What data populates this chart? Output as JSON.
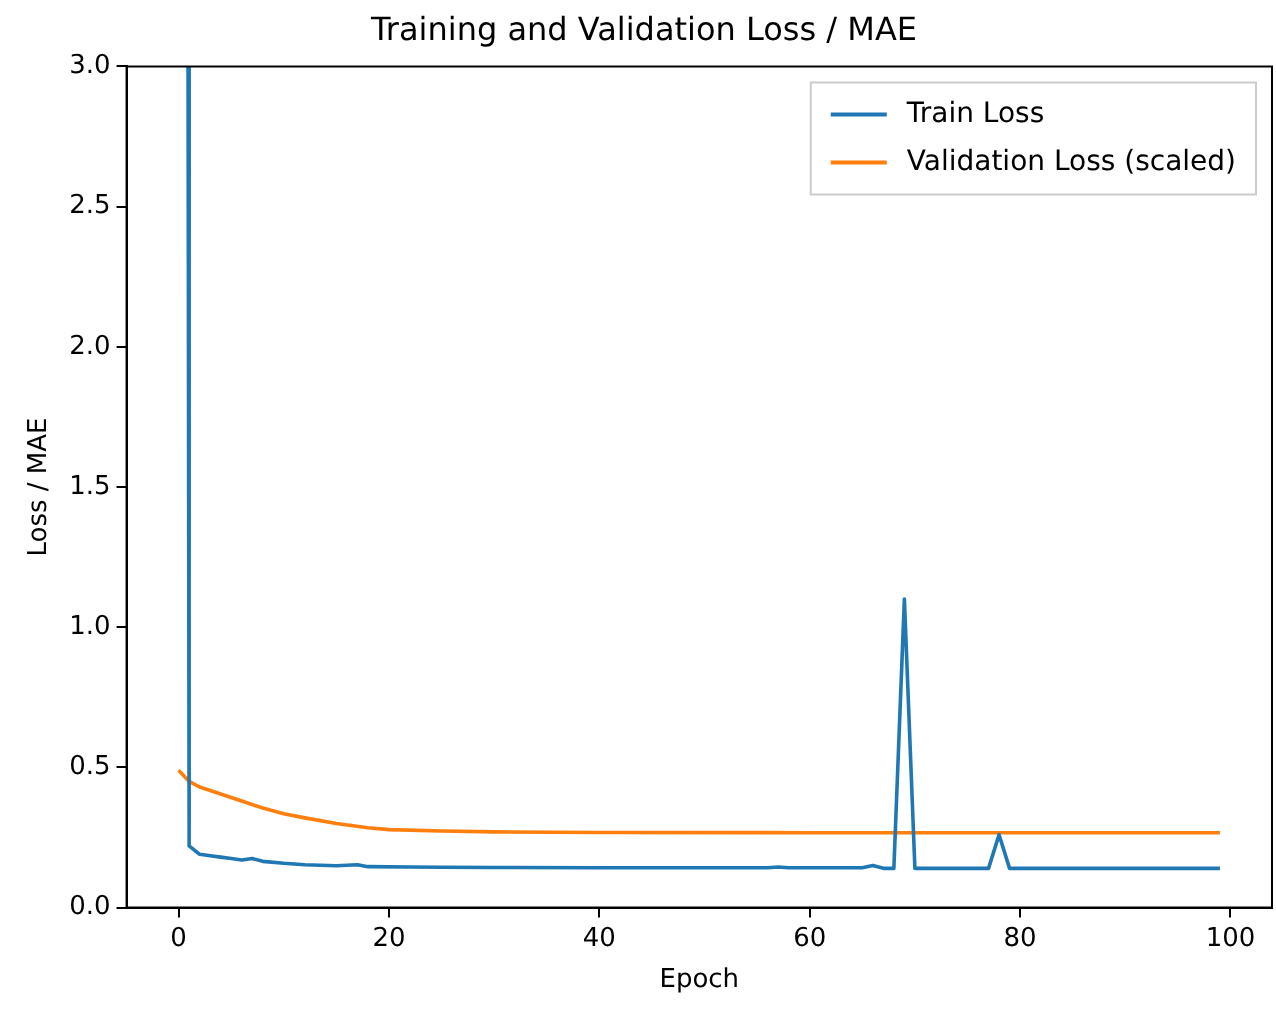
{
  "chart_data": {
    "type": "line",
    "title": "Training and Validation Loss / MAE",
    "xlabel": "Epoch",
    "ylabel": "Loss / MAE",
    "xlim": [
      -4.95,
      103.95
    ],
    "xticks": [
      0,
      20,
      40,
      60,
      80,
      100
    ],
    "ylim": [
      0,
      3
    ],
    "yticks": [
      {
        "value": 0,
        "label": "0.0"
      },
      {
        "value": 0.5,
        "label": "0.5"
      },
      {
        "value": 1,
        "label": "1.0"
      },
      {
        "value": 1.5,
        "label": "1.5"
      },
      {
        "value": 2,
        "label": "2.0"
      },
      {
        "value": 2.5,
        "label": "2.5"
      },
      {
        "value": 3,
        "label": "3.0"
      }
    ],
    "legend": "top right",
    "line_style": "solid",
    "marker": "none",
    "series": [
      {
        "name": "Train Loss",
        "color": "#1f77b4",
        "x": [
          0.9,
          1,
          2,
          3,
          4,
          5,
          6,
          7,
          8,
          10,
          12,
          15,
          17,
          18,
          22,
          25,
          30,
          40,
          50,
          56,
          57,
          58,
          65,
          66,
          67,
          68,
          69,
          70,
          77,
          78,
          79,
          90,
          99
        ],
        "values": [
          3.0,
          0.22,
          0.19,
          0.185,
          0.18,
          0.175,
          0.17,
          0.175,
          0.165,
          0.158,
          0.153,
          0.149,
          0.153,
          0.146,
          0.145,
          0.144,
          0.143,
          0.142,
          0.142,
          0.142,
          0.145,
          0.142,
          0.142,
          0.15,
          0.14,
          0.14,
          1.1,
          0.14,
          0.14,
          0.26,
          0.14,
          0.14,
          0.14
        ]
      },
      {
        "name": "Validation Loss (scaled)",
        "color": "#ff7f0e",
        "x": [
          0,
          1,
          2,
          4,
          6,
          8,
          10,
          12,
          15,
          18,
          20,
          25,
          30,
          40,
          60,
          80,
          99
        ],
        "values": [
          0.49,
          0.45,
          0.43,
          0.405,
          0.38,
          0.355,
          0.335,
          0.32,
          0.3,
          0.285,
          0.278,
          0.273,
          0.27,
          0.268,
          0.267,
          0.267,
          0.267
        ]
      }
    ]
  }
}
